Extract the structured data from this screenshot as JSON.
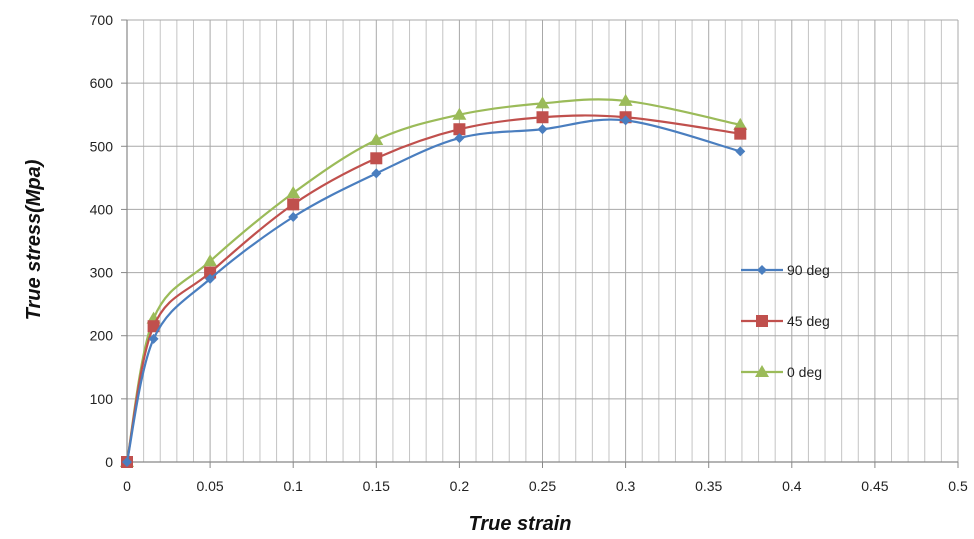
{
  "chart_data": {
    "type": "line",
    "xlabel": "True strain",
    "ylabel": "True stress(Mpa)",
    "xlim": [
      0,
      0.5
    ],
    "ylim": [
      0,
      700
    ],
    "x_ticks": [
      "0",
      "0.05",
      "0.1",
      "0.15",
      "0.2",
      "0.25",
      "0.3",
      "0.35",
      "0.4",
      "0.45",
      "0.5"
    ],
    "y_ticks": [
      "0",
      "100",
      "200",
      "300",
      "400",
      "500",
      "600",
      "700"
    ],
    "grid": true,
    "legend_position": "right",
    "series": [
      {
        "name": "90 deg",
        "color": "#4a7ebf",
        "marker": "diamond",
        "x": [
          0,
          0.016,
          0.05,
          0.1,
          0.15,
          0.2,
          0.25,
          0.3,
          0.369
        ],
        "y": [
          0,
          195,
          290,
          388,
          457,
          513,
          527,
          541,
          492
        ]
      },
      {
        "name": "45 deg",
        "color": "#c0504d",
        "marker": "square",
        "x": [
          0,
          0.016,
          0.05,
          0.1,
          0.15,
          0.2,
          0.25,
          0.3,
          0.369
        ],
        "y": [
          0,
          215,
          300,
          408,
          481,
          527,
          546,
          546,
          520
        ]
      },
      {
        "name": "0 deg",
        "color": "#9bbb59",
        "marker": "triangle",
        "x": [
          0,
          0.016,
          0.05,
          0.1,
          0.15,
          0.2,
          0.25,
          0.3,
          0.369
        ],
        "y": [
          0,
          227,
          318,
          426,
          510,
          550,
          568,
          572,
          534
        ]
      }
    ]
  }
}
